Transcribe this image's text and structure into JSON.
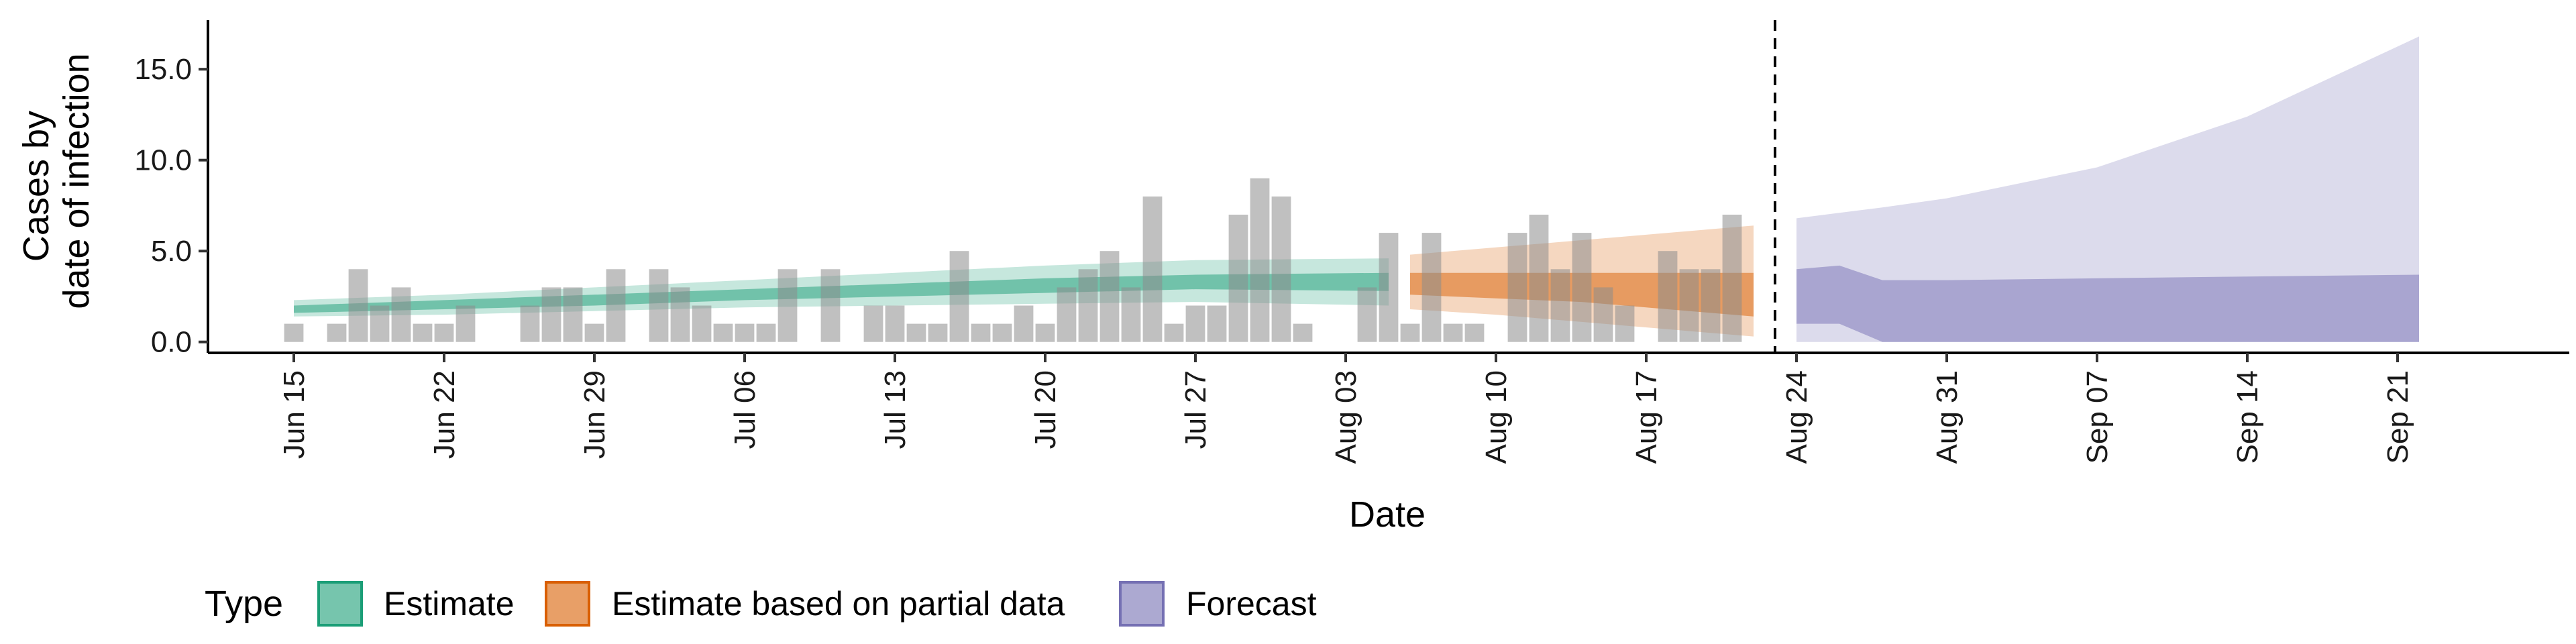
{
  "chart_data": {
    "type": "area",
    "title": "",
    "xlabel": "Date",
    "ylabel_lines": [
      "Cases by",
      "date of infection"
    ],
    "xlim": [
      "2020-06-11",
      "2020-09-29"
    ],
    "ylim": [
      -0.6,
      17.7
    ],
    "y_ticks": [
      0,
      5,
      10,
      15
    ],
    "y_tick_labels": [
      "0.0",
      "5.0",
      "10.0",
      "15.0"
    ],
    "x_ticks": [
      "2020-06-15",
      "2020-06-22",
      "2020-06-29",
      "2020-07-06",
      "2020-07-13",
      "2020-07-20",
      "2020-07-27",
      "2020-08-03",
      "2020-08-10",
      "2020-08-17",
      "2020-08-24",
      "2020-08-31",
      "2020-09-07",
      "2020-09-14",
      "2020-09-21"
    ],
    "x_tick_labels": [
      "Jun 15",
      "Jun 22",
      "Jun 29",
      "Jul 06",
      "Jul 13",
      "Jul 20",
      "Jul 27",
      "Aug 03",
      "Aug 10",
      "Aug 17",
      "Aug 24",
      "Aug 31",
      "Sep 07",
      "Sep 14",
      "Sep 21"
    ],
    "grid": false,
    "vline_date": "2020-08-23",
    "reported_cases": {
      "start_date": "2020-06-15",
      "values": [
        1,
        0,
        1,
        4,
        2,
        3,
        1,
        1,
        2,
        0,
        0,
        2,
        3,
        3,
        1,
        4,
        0,
        4,
        3,
        2,
        1,
        1,
        1,
        4,
        0,
        4,
        0,
        2,
        2,
        1,
        1,
        5,
        1,
        1,
        2,
        1,
        3,
        4,
        5,
        3,
        8,
        1,
        2,
        2,
        7,
        9,
        8,
        1,
        0,
        0,
        3,
        6,
        1,
        6,
        1,
        1,
        0,
        6,
        7,
        4,
        6,
        3,
        2,
        0,
        5,
        4,
        4,
        7
      ]
    },
    "series": [
      {
        "name": "Estimate",
        "color": "#1B9E77",
        "points": [
          [
            "2020-06-15",
            1.8,
            1.6,
            2.0,
            1.4,
            2.3
          ],
          [
            "2020-06-22",
            2.0,
            1.8,
            2.3,
            1.5,
            2.6
          ],
          [
            "2020-06-29",
            2.3,
            2.0,
            2.6,
            1.7,
            3.0
          ],
          [
            "2020-07-06",
            2.6,
            2.3,
            2.9,
            1.9,
            3.4
          ],
          [
            "2020-07-13",
            2.9,
            2.5,
            3.2,
            2.0,
            3.8
          ],
          [
            "2020-07-20",
            3.1,
            2.7,
            3.5,
            2.1,
            4.2
          ],
          [
            "2020-07-27",
            3.3,
            2.9,
            3.7,
            2.2,
            4.5
          ],
          [
            "2020-08-05",
            3.3,
            2.8,
            3.8,
            2.0,
            4.6
          ]
        ]
      },
      {
        "name": "Estimate based on partial data",
        "color": "#D95F02",
        "points": [
          [
            "2020-08-06",
            3.2,
            2.6,
            3.8,
            1.8,
            4.8
          ],
          [
            "2020-08-10",
            3.1,
            2.4,
            3.8,
            1.5,
            5.2
          ],
          [
            "2020-08-14",
            3.0,
            2.2,
            3.8,
            1.1,
            5.6
          ],
          [
            "2020-08-18",
            2.8,
            1.8,
            3.8,
            0.7,
            6.0
          ],
          [
            "2020-08-22",
            2.6,
            1.4,
            3.8,
            0.3,
            6.4
          ]
        ]
      },
      {
        "name": "Forecast",
        "color": "#7570B3",
        "points": [
          [
            "2020-08-24",
            0,
            1.0,
            4.0,
            0.0,
            6.8
          ],
          [
            "2020-08-26",
            0,
            1.0,
            4.2,
            0.0,
            7.1
          ],
          [
            "2020-08-28",
            0,
            0.0,
            3.4,
            0.0,
            7.4
          ],
          [
            "2020-08-31",
            0,
            0.0,
            3.4,
            0.0,
            7.9
          ],
          [
            "2020-09-07",
            0,
            0.0,
            3.5,
            0.0,
            9.6
          ],
          [
            "2020-09-14",
            0,
            0.0,
            3.6,
            0.0,
            12.4
          ],
          [
            "2020-09-22",
            0,
            0.0,
            3.7,
            0.0,
            16.8
          ]
        ]
      }
    ],
    "legend": {
      "title": "Type",
      "position": "bottom-left",
      "items": [
        {
          "label": "Estimate",
          "color": "#1B9E77"
        },
        {
          "label": "Estimate based on partial data",
          "color": "#D95F02"
        },
        {
          "label": "Forecast",
          "color": "#7570B3"
        }
      ]
    }
  }
}
